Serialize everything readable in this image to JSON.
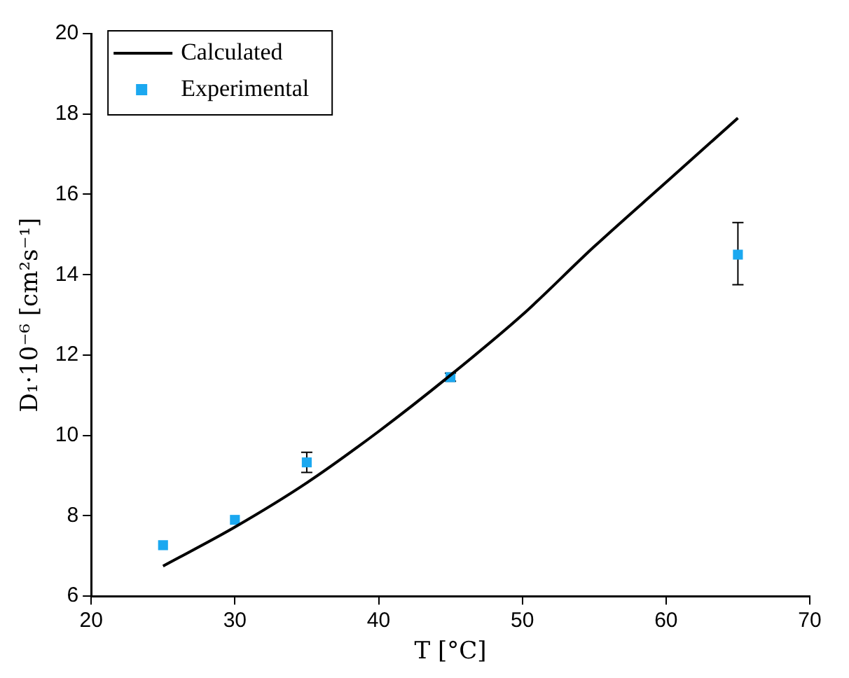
{
  "chart_data": {
    "type": "scatter",
    "xlabel": "T [°C]",
    "ylabel": "D₁·10⁻⁶ [cm²s⁻¹]",
    "xlim": [
      20,
      70
    ],
    "xticks": [
      20,
      30,
      40,
      50,
      60,
      70
    ],
    "ylim": [
      6,
      20
    ],
    "yticks": [
      6,
      8,
      10,
      12,
      14,
      16,
      18,
      20
    ],
    "grid": false,
    "legend": "top left",
    "series": [
      {
        "name": "Calculated",
        "type": "line",
        "color": "#000000",
        "marker": "none",
        "line_style": "solid",
        "x": [
          25,
          30,
          35,
          40,
          45,
          50,
          55,
          60,
          65
        ],
        "values": [
          6.75,
          7.72,
          8.82,
          10.1,
          11.5,
          13.0,
          14.7,
          16.3,
          17.9
        ]
      },
      {
        "name": "Experimental",
        "type": "scatter",
        "color": "#1ba8f0",
        "marker": "square",
        "x": [
          25,
          30,
          35,
          45,
          65
        ],
        "values": [
          7.27,
          7.9,
          9.33,
          11.45,
          14.5
        ],
        "errors": [
          null,
          null,
          0.25,
          0.1,
          [
            13.75,
            15.3
          ]
        ]
      }
    ]
  }
}
